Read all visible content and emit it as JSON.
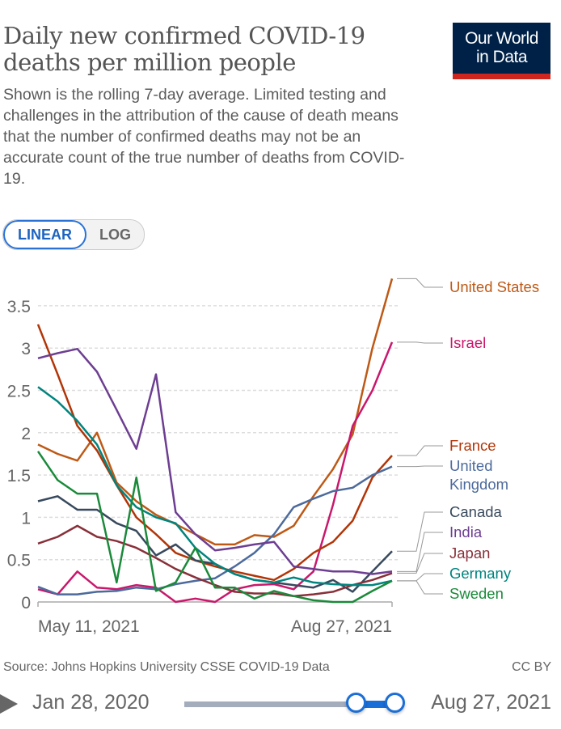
{
  "header": {
    "title": "Daily new confirmed COVID-19 deaths per million people",
    "subtitle": "Shown is the rolling 7-day average. Limited testing and challenges in the attribution of the cause of death means that the number of confirmed deaths may not be an accurate count of the true number of deaths from COVID-19.",
    "logo_line1": "Our World",
    "logo_line2": "in Data"
  },
  "controls": {
    "linear_label": "LINEAR",
    "log_label": "LOG",
    "active": "LINEAR"
  },
  "footer": {
    "source": "Source: Johns Hopkins University CSSE COVID-19 Data",
    "license": "CC BY"
  },
  "timeline": {
    "start_label": "Jan 28, 2020",
    "end_label": "Aug 27, 2021",
    "range_start_fraction": 0.81,
    "range_end_fraction": 1.0
  },
  "chart_data": {
    "type": "line",
    "title": "Daily new confirmed COVID-19 deaths per million people",
    "xlabel": "",
    "ylabel": "",
    "x_start_label": "May 11, 2021",
    "x_end_label": "Aug 27, 2021",
    "x_days_since_start": [
      0,
      6,
      12,
      18,
      24,
      30,
      36,
      42,
      48,
      54,
      60,
      66,
      72,
      78,
      84,
      90,
      96,
      102,
      108
    ],
    "ylim": [
      0,
      3.8
    ],
    "yticks": [
      0,
      0.5,
      1,
      1.5,
      2,
      2.5,
      3,
      3.5
    ],
    "ytick_labels": [
      "0",
      "0.5",
      "1",
      "1.5",
      "2",
      "2.5",
      "3",
      "3.5"
    ],
    "grid": true,
    "legend_placement": "right",
    "series": [
      {
        "name": "United States",
        "legend": [
          "United States"
        ],
        "color": "#be5915",
        "values": [
          1.86,
          1.75,
          1.67,
          2.0,
          1.41,
          1.19,
          1.03,
          0.92,
          0.8,
          0.68,
          0.68,
          0.79,
          0.77,
          0.9,
          1.25,
          1.57,
          1.98,
          3.0,
          3.82
        ]
      },
      {
        "name": "Israel",
        "legend": [
          "Israel"
        ],
        "color": "#c9186c",
        "values": [
          0.15,
          0.09,
          0.36,
          0.17,
          0.15,
          0.2,
          0.17,
          0.0,
          0.04,
          0.0,
          0.15,
          0.2,
          0.21,
          0.15,
          0.36,
          1.15,
          2.08,
          2.5,
          3.07
        ]
      },
      {
        "name": "France",
        "legend": [
          "France"
        ],
        "color": "#b13507",
        "values": [
          3.28,
          2.69,
          2.08,
          1.79,
          1.38,
          1.0,
          0.8,
          0.58,
          0.49,
          0.42,
          0.36,
          0.31,
          0.26,
          0.39,
          0.58,
          0.71,
          0.96,
          1.47,
          1.73
        ]
      },
      {
        "name": "United Kingdom",
        "legend": [
          "United",
          "Kingdom"
        ],
        "color": "#4c6a9c",
        "values": [
          0.18,
          0.09,
          0.09,
          0.12,
          0.13,
          0.17,
          0.15,
          0.21,
          0.25,
          0.28,
          0.42,
          0.58,
          0.8,
          1.12,
          1.22,
          1.31,
          1.35,
          1.5,
          1.6
        ]
      },
      {
        "name": "Canada",
        "legend": [
          "Canada"
        ],
        "color": "#38495e",
        "values": [
          1.19,
          1.25,
          1.09,
          1.09,
          0.93,
          0.84,
          0.55,
          0.68,
          0.49,
          0.45,
          0.33,
          0.26,
          0.23,
          0.2,
          0.17,
          0.26,
          0.12,
          0.36,
          0.6
        ]
      },
      {
        "name": "India",
        "legend": [
          "India"
        ],
        "color": "#6d3e91",
        "values": [
          2.88,
          2.94,
          2.99,
          2.72,
          2.27,
          1.81,
          2.69,
          1.06,
          0.8,
          0.61,
          0.64,
          0.68,
          0.71,
          0.42,
          0.39,
          0.36,
          0.36,
          0.33,
          0.36
        ]
      },
      {
        "name": "Japan",
        "legend": [
          "Japan"
        ],
        "color": "#883039",
        "values": [
          0.69,
          0.77,
          0.9,
          0.77,
          0.72,
          0.64,
          0.52,
          0.39,
          0.29,
          0.2,
          0.12,
          0.1,
          0.1,
          0.07,
          0.09,
          0.12,
          0.2,
          0.26,
          0.34
        ]
      },
      {
        "name": "Germany",
        "legend": [
          "Germany"
        ],
        "color": "#00847e",
        "values": [
          2.54,
          2.37,
          2.14,
          1.86,
          1.38,
          1.12,
          1.0,
          0.93,
          0.64,
          0.45,
          0.33,
          0.26,
          0.23,
          0.29,
          0.23,
          0.21,
          0.2,
          0.2,
          0.25
        ]
      },
      {
        "name": "Sweden",
        "legend": [
          "Sweden"
        ],
        "color": "#1a8a3a",
        "values": [
          1.78,
          1.44,
          1.28,
          1.28,
          0.23,
          1.47,
          0.13,
          0.23,
          0.64,
          0.17,
          0.17,
          0.04,
          0.13,
          0.07,
          0.02,
          0.0,
          0.0,
          0.13,
          0.25
        ]
      }
    ]
  }
}
